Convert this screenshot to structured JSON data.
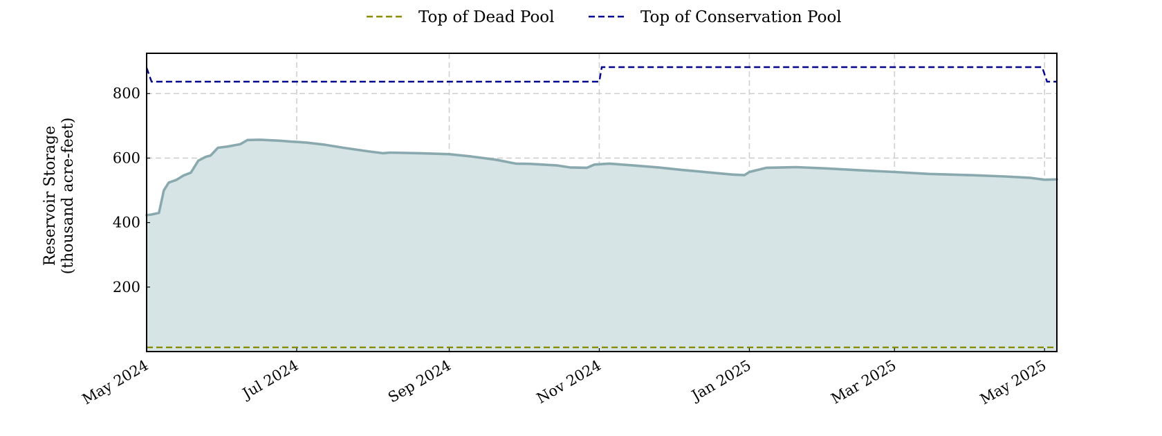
{
  "chart_data": {
    "type": "area",
    "title": "",
    "xlabel": "",
    "ylabel_lines": [
      "Reservoir Storage",
      "(thousand acre-feet)"
    ],
    "xlim": [
      "2024-05-01",
      "2025-05-06"
    ],
    "ylim": [
      0,
      925
    ],
    "x_ticks": [
      "2024-05-01",
      "2024-07-01",
      "2024-09-01",
      "2024-11-01",
      "2025-01-01",
      "2025-03-01",
      "2025-05-01"
    ],
    "x_tick_labels": [
      "May 2024",
      "Jul 2024",
      "Sep 2024",
      "Nov 2024",
      "Jan 2025",
      "Mar 2025",
      "May 2025"
    ],
    "y_ticks": [
      200,
      400,
      600,
      800
    ],
    "y_tick_labels": [
      "200",
      "400",
      "600",
      "800"
    ],
    "grid": true,
    "legend_position": "top-center",
    "legend": [
      {
        "label": "Top of Dead Pool",
        "color": "#8b8b00",
        "style": "dashed"
      },
      {
        "label": "Top of Conservation Pool",
        "color": "#00008b",
        "style": "dashed"
      }
    ],
    "storage": {
      "color": "#8aa9ae",
      "fill": "#d6e4e6",
      "points": [
        [
          "2024-05-01",
          423
        ],
        [
          "2024-05-03",
          425
        ],
        [
          "2024-05-06",
          430
        ],
        [
          "2024-05-08",
          500
        ],
        [
          "2024-05-10",
          524
        ],
        [
          "2024-05-13",
          532
        ],
        [
          "2024-05-16",
          546
        ],
        [
          "2024-05-19",
          555
        ],
        [
          "2024-05-22",
          592
        ],
        [
          "2024-05-25",
          604
        ],
        [
          "2024-05-27",
          608
        ],
        [
          "2024-05-30",
          632
        ],
        [
          "2024-06-03",
          636
        ],
        [
          "2024-06-08",
          643
        ],
        [
          "2024-06-11",
          656
        ],
        [
          "2024-06-16",
          657
        ],
        [
          "2024-06-24",
          654
        ],
        [
          "2024-06-29",
          651
        ],
        [
          "2024-07-01",
          650
        ],
        [
          "2024-07-05",
          648
        ],
        [
          "2024-07-12",
          642
        ],
        [
          "2024-07-20",
          632
        ],
        [
          "2024-07-30",
          621
        ],
        [
          "2024-08-05",
          615
        ],
        [
          "2024-08-08",
          617
        ],
        [
          "2024-08-20",
          615
        ],
        [
          "2024-09-01",
          612
        ],
        [
          "2024-09-10",
          605
        ],
        [
          "2024-09-20",
          595
        ],
        [
          "2024-09-28",
          583
        ],
        [
          "2024-10-04",
          582
        ],
        [
          "2024-10-15",
          577
        ],
        [
          "2024-10-20",
          571
        ],
        [
          "2024-10-27",
          570
        ],
        [
          "2024-10-30",
          580
        ],
        [
          "2024-11-05",
          583
        ],
        [
          "2024-11-15",
          577
        ],
        [
          "2024-11-25",
          571
        ],
        [
          "2024-12-05",
          563
        ],
        [
          "2024-12-15",
          556
        ],
        [
          "2024-12-25",
          549
        ],
        [
          "2024-12-30",
          547
        ],
        [
          "2025-01-01",
          557
        ],
        [
          "2025-01-08",
          570
        ],
        [
          "2025-01-20",
          572
        ],
        [
          "2025-02-01",
          568
        ],
        [
          "2025-02-15",
          562
        ],
        [
          "2025-03-01",
          557
        ],
        [
          "2025-03-15",
          551
        ],
        [
          "2025-04-01",
          547
        ],
        [
          "2025-04-15",
          543
        ],
        [
          "2025-04-25",
          539
        ],
        [
          "2025-05-01",
          533
        ],
        [
          "2025-05-06",
          534
        ]
      ]
    },
    "dead_pool": {
      "points": [
        [
          "2024-05-01",
          13
        ],
        [
          "2025-05-06",
          13
        ]
      ]
    },
    "conservation_pool": {
      "points": [
        [
          "2024-05-01",
          880
        ],
        [
          "2024-05-03",
          837
        ],
        [
          "2024-11-01",
          837
        ],
        [
          "2024-11-02",
          882
        ],
        [
          "2025-04-30",
          882
        ],
        [
          "2025-05-02",
          837
        ],
        [
          "2025-05-06",
          837
        ]
      ]
    }
  }
}
